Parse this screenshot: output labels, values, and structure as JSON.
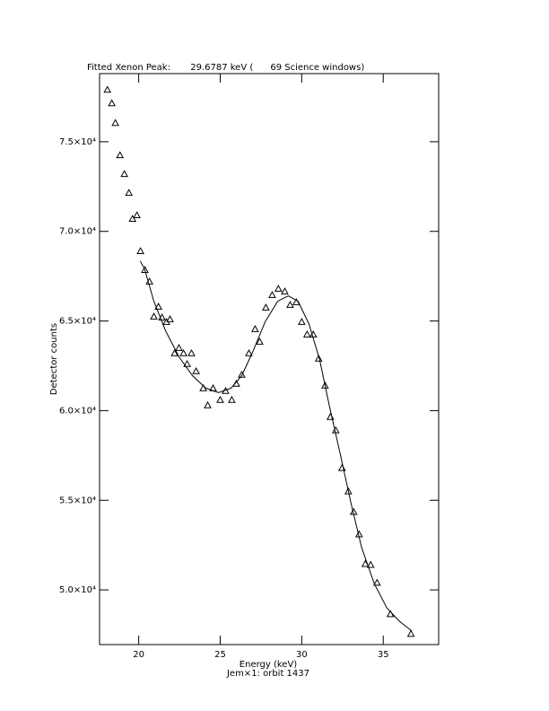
{
  "chart_data": {
    "type": "scatter",
    "title": "Fitted Xenon Peak:       29.6787 keV (      69 Science windows)",
    "x_label": "Energy (keV)",
    "subtitle": "Jem×1: orbit 1437",
    "y_label": "Detector counts",
    "xlim": [
      17.6,
      38.4
    ],
    "ylim": [
      46950,
      78800
    ],
    "xticks": [
      20,
      25,
      30,
      35
    ],
    "yticks": [
      {
        "value": 50000,
        "label": "5.0×10⁴"
      },
      {
        "value": 55000,
        "label": "5.5×10⁴"
      },
      {
        "value": 60000,
        "label": "6.0×10⁴"
      },
      {
        "value": 65000,
        "label": "6.5×10⁴"
      },
      {
        "value": 70000,
        "label": "7.0×10⁴"
      },
      {
        "value": 75000,
        "label": "7.5×10⁴"
      }
    ],
    "color": "#000000",
    "points": {
      "x": [
        18.08,
        18.35,
        18.57,
        18.85,
        19.12,
        19.4,
        19.62,
        19.89,
        20.11,
        20.38,
        20.66,
        20.93,
        21.21,
        21.43,
        21.7,
        21.92,
        22.2,
        22.47,
        22.75,
        22.97,
        23.24,
        23.52,
        23.96,
        24.23,
        24.56,
        25.0,
        25.33,
        25.71,
        25.99,
        26.32,
        26.76,
        27.14,
        27.42,
        27.8,
        28.19,
        28.57,
        28.96,
        29.29,
        29.67,
        30.0,
        30.33,
        30.71,
        31.04,
        31.43,
        31.76,
        32.09,
        32.47,
        32.86,
        33.19,
        33.52,
        33.9,
        34.23,
        34.62,
        35.44,
        36.7
      ],
      "y": [
        77900,
        77150,
        76050,
        74250,
        73200,
        72150,
        70700,
        70900,
        68900,
        67850,
        67200,
        65250,
        65800,
        65200,
        64950,
        65100,
        63200,
        63500,
        63200,
        62600,
        63200,
        62200,
        61250,
        60300,
        61250,
        60600,
        61100,
        60600,
        61500,
        62000,
        63200,
        64550,
        63850,
        65750,
        66450,
        66800,
        66650,
        65900,
        66050,
        64950,
        64250,
        64250,
        62900,
        61400,
        59650,
        58900,
        56800,
        55500,
        54350,
        53100,
        51450,
        51400,
        50400,
        48650,
        47550
      ]
    },
    "fit": {
      "x": [
        20.1,
        20.38,
        20.93,
        21.65,
        22.47,
        23.3,
        24.12,
        24.89,
        25.66,
        26.32,
        27.03,
        27.75,
        28.52,
        29.18,
        29.78,
        30.44,
        31.1,
        31.7,
        32.36,
        33.02,
        33.68,
        34.45,
        35.22,
        35.99,
        36.76
      ],
      "y": [
        68350,
        67850,
        66100,
        64450,
        63000,
        61950,
        61250,
        61000,
        61250,
        61950,
        63350,
        64950,
        66100,
        66400,
        66100,
        64850,
        62850,
        60250,
        57600,
        54850,
        52350,
        50350,
        49000,
        48250,
        47700
      ]
    }
  }
}
